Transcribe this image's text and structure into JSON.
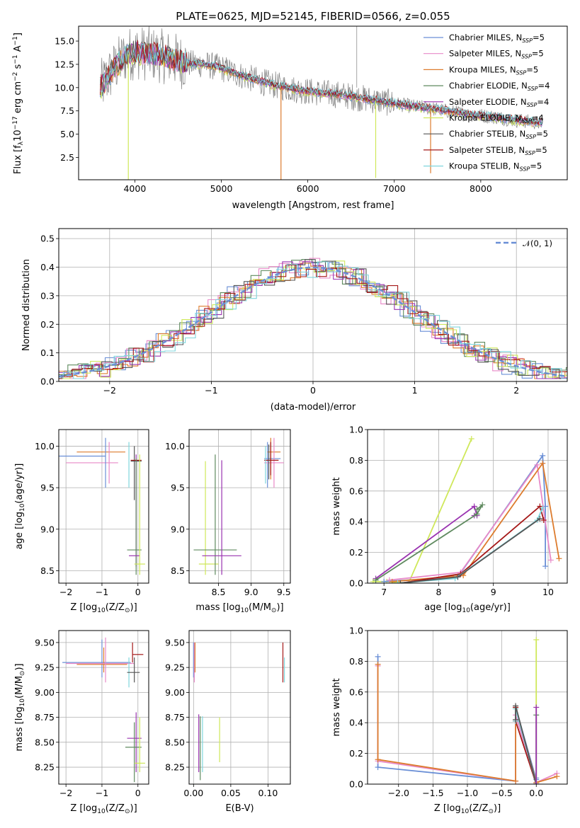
{
  "colors": {
    "chabrier_miles": "#6a8fd6",
    "salpeter_miles": "#e889c8",
    "kroupa_miles": "#dd7c2e",
    "chabrier_elodie": "#5f8a5f",
    "salpeter_elodie": "#9a33b0",
    "kroupa_elodie": "#cfe85a",
    "chabrier_stelib": "#555555",
    "salpeter_stelib": "#a51818",
    "kroupa_stelib": "#7fd6dc",
    "data": "#808080",
    "gauss": "#6a8fd6"
  },
  "chart_data": [
    {
      "type": "line",
      "id": "spectrum",
      "title": "PLATE=0625, MJD=52145, FIBERID=0566, z=0.055",
      "xlabel": "wavelength [Angstrom, rest frame]",
      "ylabel": "Flux [fλ10⁻¹⁷ erg cm⁻² s⁻¹ A⁻¹]",
      "xlim": [
        3350,
        9000
      ],
      "ylim": [
        0.1,
        16.6
      ],
      "xticks": [
        4000,
        5000,
        6000,
        7000,
        8000
      ],
      "yticks": [
        2.5,
        5.0,
        7.5,
        10.0,
        12.5,
        15.0
      ],
      "xticklabels": [
        "4000",
        "5000",
        "6000",
        "7000",
        "8000"
      ],
      "yticklabels": [
        "2.5",
        "5.0",
        "7.5",
        "10.0",
        "12.5",
        "15.0"
      ],
      "legend_position": "top-right",
      "legend": [
        {
          "prefix": "Chabrier MILES, N",
          "sub": "SSP",
          "suffix": "=5",
          "color_key": "chabrier_miles"
        },
        {
          "prefix": "Salpeter MILES, N",
          "sub": "SSP",
          "suffix": "=5",
          "color_key": "salpeter_miles"
        },
        {
          "prefix": "Kroupa MILES, N",
          "sub": "SSP",
          "suffix": "=5",
          "color_key": "kroupa_miles"
        },
        {
          "prefix": "Chabrier ELODIE, N",
          "sub": "SSP",
          "suffix": "=4",
          "color_key": "chabrier_elodie"
        },
        {
          "prefix": "Salpeter ELODIE, N",
          "sub": "SSP",
          "suffix": "=4",
          "color_key": "salpeter_elodie"
        },
        {
          "prefix": "Kroupa ELODIE, N",
          "sub": "SSP",
          "suffix": "=4",
          "color_key": "kroupa_elodie"
        },
        {
          "prefix": "Chabrier STELIB, N",
          "sub": "SSP",
          "suffix": "=5",
          "color_key": "chabrier_stelib"
        },
        {
          "prefix": "Salpeter STELIB, N",
          "sub": "SSP",
          "suffix": "=5",
          "color_key": "salpeter_stelib"
        },
        {
          "prefix": "Kroupa STELIB, N",
          "sub": "SSP",
          "suffix": "=5",
          "color_key": "kroupa_stelib"
        }
      ],
      "continuum": {
        "x": [
          3600,
          3700,
          3800,
          3900,
          4000,
          4200,
          4400,
          4600,
          4800,
          5000,
          5200,
          5400,
          5600,
          5800,
          6000,
          6200,
          6400,
          6600,
          6800,
          7000,
          7200,
          7400,
          7600,
          7800,
          8000,
          8200,
          8400,
          8700
        ],
        "y": [
          10.0,
          11.3,
          12.5,
          13.5,
          13.8,
          13.6,
          13.2,
          12.6,
          12.5,
          12.1,
          11.4,
          10.8,
          10.3,
          9.9,
          9.6,
          9.4,
          9.2,
          8.9,
          8.6,
          8.3,
          8.0,
          7.8,
          7.5,
          7.2,
          7.0,
          6.8,
          6.5,
          6.2
        ]
      },
      "absorption_lines": [
        {
          "x": 3925,
          "y": 0.1,
          "color_key": "kroupa_elodie"
        },
        {
          "x": 5690,
          "y": 0.1,
          "color_key": "kroupa_miles"
        },
        {
          "x": 6785,
          "y": 0.3,
          "color_key": "kroupa_elodie"
        },
        {
          "x": 7420,
          "y": 0.8,
          "color_key": "kroupa_miles"
        }
      ]
    },
    {
      "type": "histogram",
      "id": "residuals",
      "xlabel": "(data-model)/error",
      "ylabel": "Normed distribution",
      "xlim": [
        -2.5,
        2.5
      ],
      "ylim": [
        0.0,
        0.535
      ],
      "xticks": [
        -2,
        -1,
        0,
        1,
        2
      ],
      "yticks": [
        0.0,
        0.1,
        0.2,
        0.3,
        0.4,
        0.5
      ],
      "xticklabels": [
        "−2",
        "−1",
        "0",
        "1",
        "2"
      ],
      "yticklabels": [
        "0.0",
        "0.1",
        "0.2",
        "0.3",
        "0.4",
        "0.5"
      ],
      "legend_position": "top-right",
      "legend_label": "𝒩(0, 1)"
    },
    {
      "type": "scatter",
      "id": "age_vs_Z",
      "xlabel_pre": "Z [log",
      "xlabel_post": "(Z/Z",
      "ylabel_pre": "age  [log",
      "ylabel_post": "(age/yr)]",
      "xlim": [
        -2.2,
        0.3
      ],
      "ylim": [
        8.35,
        10.2
      ],
      "xticks": [
        -2,
        -1,
        0
      ],
      "yticks": [
        8.5,
        9.0,
        9.5,
        10.0
      ],
      "xticklabels": [
        "−2",
        "−1",
        "0"
      ],
      "yticklabels": [
        "8.5",
        "9.0",
        "9.5",
        "10.0"
      ],
      "points": [
        {
          "x": -2.0,
          "xe": 0.0,
          "y": 9.88,
          "ye": 0.0,
          "xl": -2.2,
          "xr": -0.9,
          "color_key": "chabrier_miles"
        },
        {
          "x": -1.7,
          "y": 9.93,
          "xl": -1.7,
          "xr": -0.35,
          "color_key": "kroupa_miles"
        },
        {
          "x": -1.3,
          "y": 9.8,
          "xl": -2.0,
          "xr": -0.55,
          "color_key": "salpeter_miles"
        },
        {
          "x": -0.9,
          "y": 9.9,
          "yl": 9.5,
          "yh": 10.1,
          "color_key": "chabrier_miles"
        },
        {
          "x": -0.8,
          "y": 9.9,
          "yl": 9.55,
          "yh": 10.05,
          "color_key": "salpeter_miles"
        },
        {
          "x": -0.1,
          "y": 9.82,
          "xl": -0.2,
          "xr": 0.1,
          "yl": 9.35,
          "yh": 10.0,
          "color_key": "chabrier_stelib"
        },
        {
          "x": -0.25,
          "y": 9.85,
          "yl": 9.5,
          "yh": 10.05,
          "color_key": "kroupa_stelib"
        },
        {
          "x": -0.05,
          "y": 9.83,
          "xl": -0.2,
          "xr": 0.1,
          "color_key": "salpeter_stelib"
        },
        {
          "x": -0.05,
          "y": 9.0,
          "yl": 8.55,
          "yh": 9.9,
          "color_key": "salpeter_elodie"
        },
        {
          "x": -0.05,
          "y": 8.75,
          "xl": -0.3,
          "xr": 0.1,
          "yl": 8.45,
          "yh": 9.85,
          "color_key": "chabrier_elodie"
        },
        {
          "x": -0.1,
          "y": 8.68,
          "xl": -0.25,
          "xr": 0.05,
          "color_key": "salpeter_elodie"
        },
        {
          "x": 0.05,
          "y": 8.58,
          "xl": -0.1,
          "xr": 0.2,
          "yl": 8.45,
          "yh": 9.9,
          "color_key": "kroupa_elodie"
        }
      ]
    },
    {
      "type": "scatter",
      "id": "age_vs_mass",
      "xlabel_pre": "mass [log",
      "xlabel_post": "(M/M",
      "xlim": [
        8.05,
        9.6
      ],
      "ylim": [
        8.35,
        10.2
      ],
      "xticks": [
        8.5,
        9.0,
        9.5
      ],
      "yticks": [
        8.5,
        9.0,
        9.5,
        10.0
      ],
      "xticklabels": [
        "8.5",
        "9.0",
        "9.5"
      ],
      "yticklabels": [
        "8.5",
        "9.0",
        "9.5",
        "10.0"
      ],
      "points": [
        {
          "x": 8.3,
          "y": 8.58,
          "xl": 8.2,
          "xr": 8.5,
          "yl": 8.45,
          "yh": 9.82,
          "color_key": "kroupa_elodie"
        },
        {
          "x": 8.45,
          "y": 8.75,
          "xl": 8.12,
          "xr": 8.78,
          "yl": 8.45,
          "yh": 9.9,
          "color_key": "chabrier_elodie"
        },
        {
          "x": 8.55,
          "y": 8.68,
          "xl": 8.25,
          "xr": 8.85,
          "yl": 8.45,
          "yh": 9.83,
          "color_key": "salpeter_elodie"
        },
        {
          "x": 9.25,
          "y": 9.85,
          "xl": 9.2,
          "xr": 9.45,
          "yl": 9.5,
          "yh": 10.05,
          "color_key": "chabrier_miles"
        },
        {
          "x": 9.3,
          "y": 9.93,
          "xl": 9.25,
          "xr": 9.45,
          "yl": 9.6,
          "yh": 10.1,
          "color_key": "kroupa_miles"
        },
        {
          "x": 9.35,
          "y": 9.8,
          "xl": 9.2,
          "xr": 9.5,
          "yl": 9.5,
          "yh": 10.1,
          "color_key": "salpeter_miles"
        },
        {
          "x": 9.3,
          "y": 9.83,
          "xl": 9.2,
          "xr": 9.42,
          "yl": 9.65,
          "yh": 10.05,
          "color_key": "salpeter_stelib"
        },
        {
          "x": 9.22,
          "y": 9.88,
          "yl": 9.55,
          "yh": 10.0,
          "color_key": "kroupa_stelib"
        },
        {
          "x": 9.27,
          "y": 9.82,
          "yl": 9.6,
          "yh": 10.02,
          "color_key": "chabrier_stelib"
        }
      ]
    },
    {
      "type": "line",
      "id": "mass_weight_vs_age",
      "xlabel_pre": "age  [log",
      "xlabel_post": "(age/yr)]",
      "ylabel": "mass weight",
      "xlim": [
        6.7,
        10.35
      ],
      "ylim": [
        0.0,
        1.0
      ],
      "xticks": [
        7,
        8,
        9,
        10
      ],
      "yticks": [
        0.0,
        0.2,
        0.4,
        0.6,
        0.8,
        1.0
      ],
      "xticklabels": [
        "7",
        "8",
        "9",
        "10"
      ],
      "yticklabels": [
        "0.0",
        "0.2",
        "0.4",
        "0.6",
        "0.8",
        "1.0"
      ],
      "series": [
        {
          "color_key": "kroupa_elodie",
          "x": [
            6.8,
            7.05,
            7.45,
            8.6
          ],
          "y": [
            0.01,
            0.01,
            0.0,
            0.94
          ]
        },
        {
          "color_key": "salpeter_elodie",
          "x": [
            6.85,
            8.65,
            8.7,
            8.65
          ],
          "y": [
            0.03,
            0.5,
            0.44,
            0.44
          ]
        },
        {
          "color_key": "chabrier_elodie",
          "x": [
            6.85,
            8.7,
            8.8,
            8.7
          ],
          "y": [
            0.02,
            0.45,
            0.51,
            0.48
          ]
        },
        {
          "color_key": "chabrier_miles",
          "x": [
            7.0,
            8.35,
            9.9,
            9.95,
            9.95
          ],
          "y": [
            0.01,
            0.04,
            0.83,
            0.5,
            0.11
          ]
        },
        {
          "color_key": "salpeter_miles",
          "x": [
            7.1,
            8.4,
            9.8,
            10.05
          ],
          "y": [
            0.02,
            0.07,
            0.77,
            0.15
          ]
        },
        {
          "color_key": "kroupa_miles",
          "x": [
            7.15,
            8.45,
            9.9,
            10.2
          ],
          "y": [
            0.01,
            0.05,
            0.78,
            0.16
          ]
        },
        {
          "color_key": "salpeter_stelib",
          "x": [
            7.3,
            8.4,
            9.85,
            9.92
          ],
          "y": [
            0.0,
            0.06,
            0.5,
            0.41
          ]
        },
        {
          "color_key": "kroupa_stelib",
          "x": [
            7.25,
            8.3,
            9.8,
            9.9
          ],
          "y": [
            0.0,
            0.03,
            0.41,
            0.49
          ]
        },
        {
          "color_key": "chabrier_stelib",
          "x": [
            7.3,
            8.35,
            9.85
          ],
          "y": [
            0.0,
            0.04,
            0.42
          ]
        }
      ]
    },
    {
      "type": "scatter",
      "id": "mass_vs_Z",
      "xlabel_pre": "Z [log",
      "xlabel_post": "(Z/Z",
      "ylabel_pre": "mass [log",
      "ylabel_post": "(M/M",
      "xlim": [
        -2.2,
        0.3
      ],
      "ylim": [
        8.08,
        9.62
      ],
      "xticks": [
        -2,
        -1,
        0
      ],
      "yticks": [
        8.25,
        8.5,
        8.75,
        9.0,
        9.25,
        9.5
      ],
      "xticklabels": [
        "−2",
        "−1",
        "0"
      ],
      "yticklabels": [
        "8.25",
        "8.50",
        "8.75",
        "9.00",
        "9.25",
        "9.50"
      ],
      "points": [
        {
          "x": -1.0,
          "y": 9.3,
          "xl": -2.1,
          "xr": -0.2,
          "yl": 9.15,
          "yh": 9.53,
          "color_key": "chabrier_miles"
        },
        {
          "x": -0.95,
          "y": 9.28,
          "xl": -1.7,
          "xr": -0.3,
          "yl": 9.2,
          "yh": 9.45,
          "color_key": "kroupa_miles"
        },
        {
          "x": -0.9,
          "y": 9.29,
          "xl": -2.0,
          "xr": -0.1,
          "yl": 9.1,
          "yh": 9.55,
          "color_key": "salpeter_miles"
        },
        {
          "x": -0.25,
          "y": 9.2,
          "yl": 9.05,
          "yh": 9.35,
          "color_key": "kroupa_stelib"
        },
        {
          "x": -0.1,
          "y": 9.2,
          "xl": -0.3,
          "xr": 0.05,
          "yl": 9.1,
          "yh": 9.35,
          "color_key": "chabrier_stelib"
        },
        {
          "x": -0.15,
          "y": 9.38,
          "xl": -0.15,
          "xr": 0.15,
          "yl": 9.3,
          "yh": 9.5,
          "color_key": "salpeter_stelib"
        },
        {
          "x": -0.05,
          "y": 8.54,
          "xl": -0.3,
          "xr": 0.1,
          "yl": 8.2,
          "yh": 8.8,
          "color_key": "salpeter_elodie"
        },
        {
          "x": -0.1,
          "y": 8.45,
          "xl": -0.35,
          "xr": 0.1,
          "yl": 8.1,
          "yh": 8.7,
          "color_key": "chabrier_elodie"
        },
        {
          "x": 0.05,
          "y": 8.29,
          "xl": -0.1,
          "xr": 0.2,
          "yl": 8.2,
          "yh": 8.75,
          "color_key": "kroupa_elodie"
        }
      ]
    },
    {
      "type": "scatter",
      "id": "mass_vs_EBV",
      "xlabel": "E(B-V)",
      "xlim": [
        -0.006,
        0.13
      ],
      "ylim": [
        8.08,
        9.62
      ],
      "xticks": [
        0.0,
        0.05,
        0.1
      ],
      "yticks": [
        8.25,
        8.5,
        8.75,
        9.0,
        9.25,
        9.5
      ],
      "xticklabels": [
        "0.00",
        "0.05",
        "0.10"
      ],
      "yticklabels": [
        "8.25",
        "8.50",
        "8.75",
        "9.00",
        "9.25",
        "9.50"
      ],
      "points": [
        {
          "x": 0.0,
          "y": 9.3,
          "yl": 9.15,
          "yh": 9.5,
          "color_key": "chabrier_miles"
        },
        {
          "x": 0.001,
          "y": 9.28,
          "yl": 9.1,
          "yh": 9.5,
          "color_key": "salpeter_miles"
        },
        {
          "x": 0.002,
          "y": 9.29,
          "yl": 9.2,
          "yh": 9.5,
          "color_key": "kroupa_miles"
        },
        {
          "x": 0.007,
          "y": 8.54,
          "yl": 8.2,
          "yh": 8.78,
          "color_key": "salpeter_elodie"
        },
        {
          "x": 0.009,
          "y": 8.45,
          "yl": 8.12,
          "yh": 8.76,
          "color_key": "chabrier_elodie"
        },
        {
          "x": 0.012,
          "y": 8.5,
          "yl": 8.2,
          "yh": 8.76,
          "color_key": "kroupa_stelib"
        },
        {
          "x": 0.035,
          "y": 8.5,
          "yl": 8.3,
          "yh": 8.75,
          "color_key": "kroupa_elodie"
        },
        {
          "x": 0.12,
          "y": 9.3,
          "yl": 9.1,
          "yh": 9.5,
          "color_key": "salpeter_stelib"
        },
        {
          "x": 0.122,
          "y": 9.25,
          "yl": 9.1,
          "yh": 9.35,
          "color_key": "kroupa_stelib"
        }
      ]
    },
    {
      "type": "line",
      "id": "mass_weight_vs_Z",
      "xlabel_pre": "Z [log",
      "xlabel_post": "(Z/Z",
      "ylabel": "mass weight",
      "xlim": [
        -2.45,
        0.45
      ],
      "ylim": [
        0.0,
        1.0
      ],
      "xticks": [
        -2.0,
        -1.5,
        -1.0,
        -0.5,
        0.0
      ],
      "yticks": [
        0.0,
        0.2,
        0.4,
        0.6,
        0.8,
        1.0
      ],
      "xticklabels": [
        "−2.0",
        "−1.5",
        "−1.0",
        "−0.5",
        "0.0"
      ],
      "yticklabels": [
        "0.0",
        "0.2",
        "0.4",
        "0.6",
        "0.8",
        "1.0"
      ],
      "series": [
        {
          "color_key": "chabrier_miles",
          "x": [
            -2.3,
            -2.3,
            -0.3,
            -0.3,
            0.0,
            0.0
          ],
          "y": [
            0.83,
            0.11,
            0.02,
            0.5,
            0.03,
            0.04
          ]
        },
        {
          "color_key": "salpeter_miles",
          "x": [
            -2.3,
            -2.3,
            -0.3,
            -0.3,
            0.0,
            0.3
          ],
          "y": [
            0.77,
            0.15,
            0.02,
            0.45,
            0.01,
            0.07
          ]
        },
        {
          "color_key": "kroupa_miles",
          "x": [
            -2.3,
            -2.3,
            -0.3,
            -0.3,
            0.0,
            0.3
          ],
          "y": [
            0.78,
            0.16,
            0.02,
            0.5,
            0.01,
            0.05
          ]
        },
        {
          "color_key": "salpeter_stelib",
          "x": [
            -0.3,
            -0.3,
            0.0
          ],
          "y": [
            0.5,
            0.41,
            0.0
          ]
        },
        {
          "color_key": "kroupa_stelib",
          "x": [
            -0.3,
            -0.3,
            0.0
          ],
          "y": [
            0.41,
            0.49,
            0.0
          ]
        },
        {
          "color_key": "chabrier_stelib",
          "x": [
            -0.3,
            -0.3,
            0.0
          ],
          "y": [
            0.42,
            0.51,
            0.0
          ]
        },
        {
          "color_key": "kroupa_elodie",
          "x": [
            0.0,
            0.0
          ],
          "y": [
            0.94,
            0.0
          ]
        },
        {
          "color_key": "chabrier_elodie",
          "x": [
            0.0,
            0.0
          ],
          "y": [
            0.45,
            0.0
          ]
        },
        {
          "color_key": "salpeter_elodie",
          "x": [
            0.0,
            0.0
          ],
          "y": [
            0.5,
            0.0
          ]
        }
      ]
    }
  ]
}
